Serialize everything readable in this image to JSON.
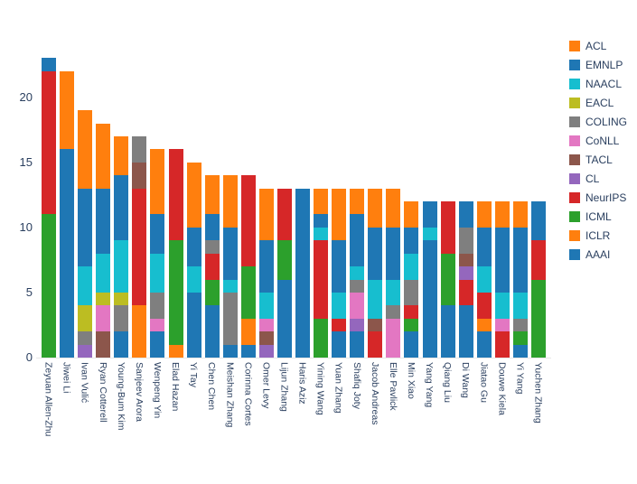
{
  "chart_data": {
    "type": "bar",
    "stacked": true,
    "title": "",
    "xlabel": "",
    "ylabel": "",
    "ylim": [
      0,
      24
    ],
    "yticks": [
      0,
      5,
      10,
      15,
      20
    ],
    "grid": false,
    "legend_position": "right",
    "categories": [
      "Zeyuan Allen-Zhu",
      "Jiwei Li",
      "Ivan Vulić",
      "Ryan Cotterell",
      "Young-Bum Kim",
      "Sanjeev Arora",
      "Wenpeng Yin",
      "Elad Hazan",
      "Yi Tay",
      "Chen Chen",
      "Meishan Zhang",
      "Corinna Cortes",
      "Omer Levy",
      "Lijun Zhang",
      "Haris Aziz",
      "Yining Wang",
      "Yuan Zhang",
      "Shafiq Joty",
      "Jacob Andreas",
      "Elle Pavlick",
      "Min Xiao",
      "Yang Yang",
      "Qiang Liu",
      "Di Wang",
      "Jiatao Gu",
      "Douwe Kiela",
      "Yi Yang",
      "Yuchen Zhang"
    ],
    "totals": [
      23,
      22,
      19,
      18,
      17,
      17,
      16,
      16,
      15,
      14,
      14,
      14,
      13,
      13,
      13,
      13,
      13,
      13,
      13,
      13,
      12,
      12,
      12,
      12,
      12,
      12,
      12,
      12
    ],
    "stack_order_bottom_to_top": [
      "AAAI",
      "ICLR",
      "ICML",
      "NeurIPS",
      "CL",
      "TACL",
      "CoNLL",
      "COLING",
      "EACL",
      "NAACL",
      "EMNLP",
      "ACL"
    ],
    "series": [
      {
        "name": "ACL",
        "color": "#ff7f0e",
        "values": [
          0,
          6,
          6,
          5,
          3,
          0,
          5,
          0,
          5,
          3,
          4,
          0,
          4,
          0,
          0,
          2,
          4,
          2,
          3,
          3,
          2,
          0,
          0,
          0,
          2,
          2,
          2,
          0
        ]
      },
      {
        "name": "EMNLP",
        "color": "#1f77b4",
        "values": [
          1,
          14,
          6,
          5,
          5,
          0,
          3,
          0,
          3,
          2,
          4,
          0,
          4,
          0,
          0,
          1,
          4,
          4,
          4,
          4,
          2,
          2,
          0,
          2,
          3,
          5,
          5,
          3
        ]
      },
      {
        "name": "NAACL",
        "color": "#17becf",
        "values": [
          0,
          0,
          3,
          3,
          4,
          0,
          3,
          0,
          2,
          0,
          1,
          0,
          2,
          0,
          0,
          1,
          2,
          1,
          3,
          2,
          2,
          1,
          0,
          0,
          2,
          2,
          2,
          0
        ]
      },
      {
        "name": "EACL",
        "color": "#bcbd22",
        "values": [
          0,
          0,
          2,
          1,
          1,
          0,
          0,
          0,
          0,
          0,
          0,
          0,
          0,
          0,
          0,
          0,
          0,
          0,
          0,
          0,
          0,
          0,
          0,
          0,
          0,
          0,
          0,
          0
        ]
      },
      {
        "name": "COLING",
        "color": "#7f7f7f",
        "values": [
          0,
          0,
          1,
          0,
          2,
          2,
          2,
          0,
          0,
          1,
          4,
          0,
          0,
          0,
          0,
          0,
          0,
          1,
          0,
          1,
          2,
          0,
          0,
          2,
          0,
          0,
          1,
          0
        ]
      },
      {
        "name": "CoNLL",
        "color": "#e377c2",
        "values": [
          0,
          0,
          0,
          2,
          0,
          0,
          1,
          0,
          0,
          0,
          0,
          0,
          1,
          0,
          0,
          0,
          0,
          2,
          0,
          3,
          0,
          0,
          0,
          0,
          0,
          1,
          0,
          0
        ]
      },
      {
        "name": "TACL",
        "color": "#8c564b",
        "values": [
          0,
          0,
          0,
          2,
          0,
          2,
          0,
          0,
          0,
          0,
          0,
          0,
          1,
          0,
          0,
          0,
          0,
          0,
          1,
          0,
          0,
          0,
          0,
          1,
          0,
          0,
          0,
          0
        ]
      },
      {
        "name": "CL",
        "color": "#9467bd",
        "values": [
          0,
          0,
          1,
          0,
          0,
          0,
          0,
          0,
          0,
          0,
          0,
          0,
          1,
          0,
          0,
          0,
          0,
          1,
          0,
          0,
          0,
          0,
          0,
          1,
          0,
          0,
          0,
          0
        ]
      },
      {
        "name": "NeurIPS",
        "color": "#d62728",
        "values": [
          11,
          0,
          0,
          0,
          0,
          9,
          0,
          7,
          0,
          2,
          0,
          7,
          0,
          4,
          0,
          6,
          1,
          0,
          2,
          0,
          1,
          0,
          4,
          2,
          2,
          2,
          0,
          3
        ]
      },
      {
        "name": "ICML",
        "color": "#2ca02c",
        "values": [
          11,
          0,
          0,
          0,
          0,
          0,
          0,
          8,
          0,
          2,
          0,
          4,
          0,
          3,
          0,
          3,
          0,
          0,
          0,
          0,
          1,
          0,
          4,
          0,
          0,
          0,
          1,
          6
        ]
      },
      {
        "name": "ICLR",
        "color": "#ff7f0e",
        "values": [
          0,
          0,
          0,
          0,
          0,
          4,
          0,
          1,
          0,
          0,
          0,
          2,
          0,
          0,
          0,
          0,
          0,
          0,
          0,
          0,
          0,
          0,
          0,
          0,
          1,
          0,
          0,
          0
        ]
      },
      {
        "name": "AAAI",
        "color": "#1f77b4",
        "values": [
          0,
          2,
          0,
          0,
          2,
          0,
          2,
          0,
          5,
          4,
          1,
          1,
          0,
          6,
          13,
          0,
          2,
          2,
          0,
          0,
          2,
          9,
          4,
          4,
          2,
          0,
          1,
          0
        ]
      }
    ]
  }
}
